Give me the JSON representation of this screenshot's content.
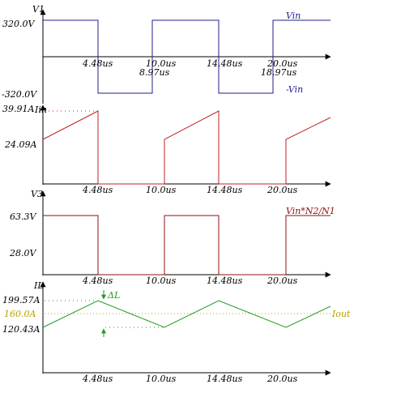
{
  "colors": {
    "axis": "#000000",
    "v1": "#1f1f8f",
    "iin": "#c02020",
    "v3": "#8b1010",
    "il": "#1f9a1f",
    "iout": "#b8a000",
    "dotted": "#1f9a1f",
    "iin_dotted": "#c02020"
  },
  "panels": {
    "v1": {
      "axis_name": "V1",
      "y_top_label": "320.0V",
      "y_bottom_label": "-320.0V",
      "trace_label_top": "Vin",
      "trace_label_bottom": "-Vin",
      "time_labels_upper": [
        "4.48us",
        "10.0us",
        "14.48us",
        "20.0us"
      ],
      "time_labels_lower": [
        "8.97us",
        "18.97us"
      ]
    },
    "iin": {
      "axis_name": "Iin",
      "y_top_label": "39.91A",
      "y_mid_label": "24.09A",
      "time_labels": [
        "4.48us",
        "10.0us",
        "14.48us",
        "20.0us"
      ]
    },
    "v3": {
      "axis_name": "V3",
      "y_top_label": "63.3V",
      "y_mid_label": "28.0V",
      "trace_label": "Vin*N2/N1",
      "time_labels": [
        "4.48us",
        "10.0us",
        "14.48us",
        "20.0us"
      ]
    },
    "il": {
      "axis_name": "IL",
      "y_top_label": "199.57A",
      "y_mid_label": "160.0A",
      "y_bottom_label": "120.43A",
      "delta_label": "ΔL",
      "iout_label": "Iout",
      "time_labels": [
        "4.48us",
        "10.0us",
        "14.48us",
        "20.0us"
      ]
    }
  }
}
